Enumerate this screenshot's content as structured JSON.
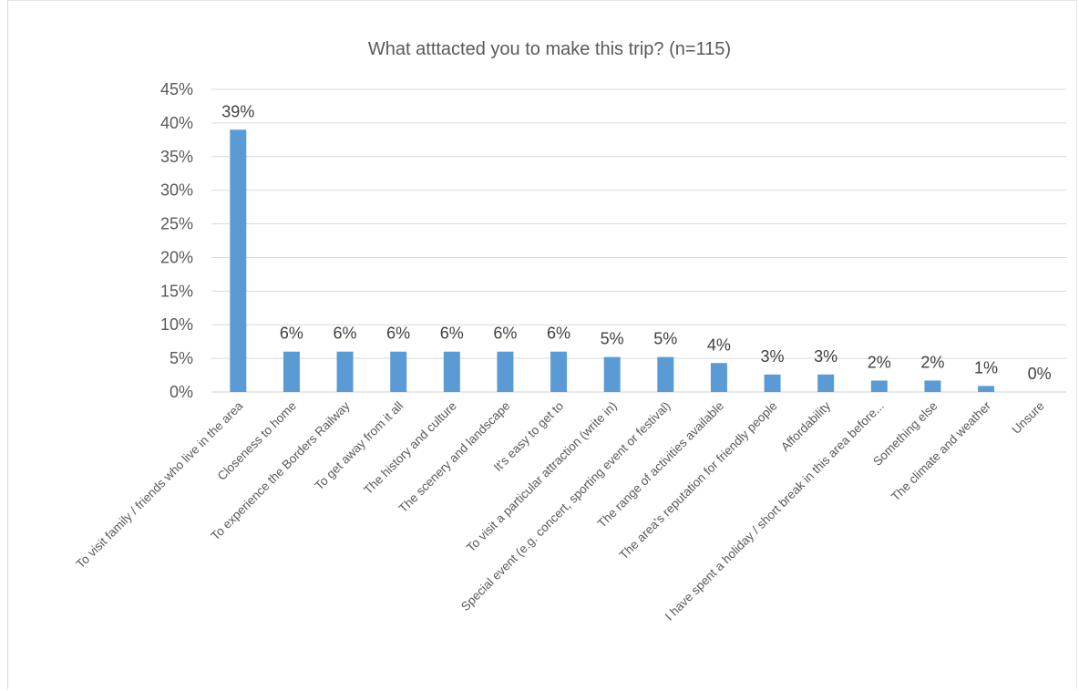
{
  "chart_data": {
    "type": "bar",
    "title": "What atttacted you to make this trip? (n=115)",
    "xlabel": "",
    "ylabel": "",
    "ylim": [
      0,
      0.45
    ],
    "yticks": [
      "0%",
      "5%",
      "10%",
      "15%",
      "20%",
      "25%",
      "30%",
      "35%",
      "40%",
      "45%"
    ],
    "grid": true,
    "legend": "none",
    "bar_color": "#5b9bd5",
    "categories": [
      "To visit family / friends who live in the area",
      "Closeness to home",
      "To experience the Borders Railway",
      "To get away from it all",
      "The history and culture",
      "The scenery and landscape",
      "It's easy to get to",
      "To visit a particular attraction (write in)",
      "Special event (e.g. concert, sporting event or festival)",
      "The range of activities available",
      "The area's reputation for friendly people",
      "Affordability",
      "I have spent a holiday / short break in this area before...",
      "Something else",
      "The climate and weather",
      "Unsure"
    ],
    "values": [
      0.39,
      0.06,
      0.06,
      0.06,
      0.06,
      0.06,
      0.06,
      0.052,
      0.052,
      0.043,
      0.026,
      0.026,
      0.017,
      0.017,
      0.009,
      0.0
    ],
    "data_labels": [
      "39%",
      "6%",
      "6%",
      "6%",
      "6%",
      "6%",
      "6%",
      "5%",
      "5%",
      "4%",
      "3%",
      "3%",
      "2%",
      "2%",
      "1%",
      "0%"
    ]
  }
}
